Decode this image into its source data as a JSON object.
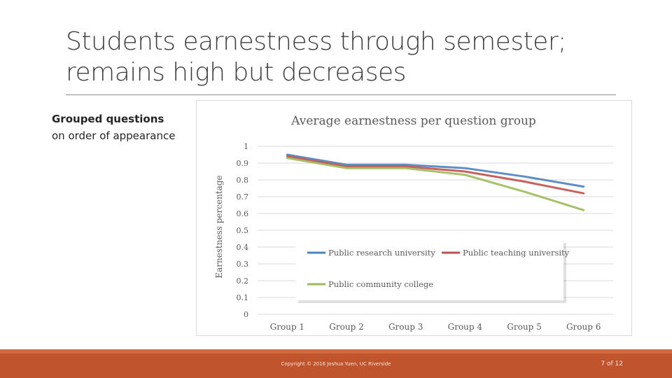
{
  "slide": {
    "title_line1": "Students earnestness through semester;",
    "title_line2": "remains high but decreases",
    "subtitle_bold": "Grouped questions",
    "subtitle_normal": "on order of appearance",
    "copyright": "Copyright © 2016 Joshua Yuen, UC Riverside",
    "page_number": "7 of 12"
  },
  "colors": {
    "footer": "#c0542d",
    "series_research": "#4f81bd",
    "series_teaching": "#c0504d",
    "series_community": "#9bbb59"
  },
  "chart_data": {
    "type": "line",
    "title": "Average earnestness per question group",
    "xlabel": "",
    "ylabel": "Earnestness percentage",
    "categories": [
      "Group 1",
      "Group 2",
      "Group 3",
      "Group 4",
      "Group 5",
      "Group 6"
    ],
    "ylim": [
      0,
      1
    ],
    "yticks": [
      "0",
      "0.1",
      "0.2",
      "0.3",
      "0.4",
      "0.5",
      "0.6",
      "0.7",
      "0.8",
      "0.9",
      "1"
    ],
    "grid": true,
    "legend_position": "inside-bottom",
    "series": [
      {
        "name": "Public research university",
        "values": [
          0.95,
          0.89,
          0.89,
          0.87,
          0.82,
          0.76
        ]
      },
      {
        "name": "Public teaching university",
        "values": [
          0.94,
          0.88,
          0.88,
          0.85,
          0.79,
          0.72
        ]
      },
      {
        "name": "Public community college",
        "values": [
          0.93,
          0.87,
          0.87,
          0.83,
          0.73,
          0.62
        ]
      }
    ]
  }
}
